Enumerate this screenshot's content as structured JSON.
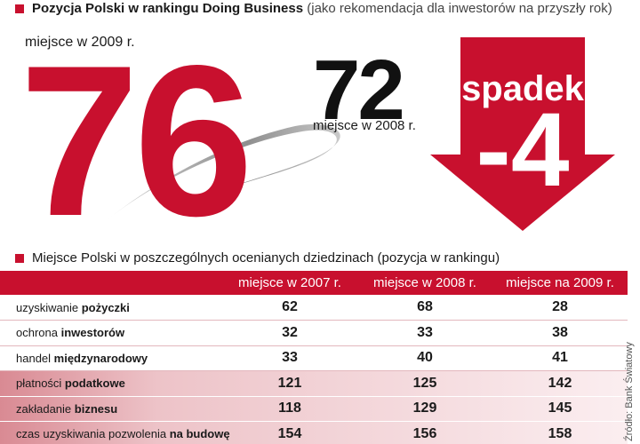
{
  "colors": {
    "accent": "#c8102e",
    "dark": "#111111"
  },
  "header": {
    "title_bold": "Pozycja Polski w rankingu Doing Business",
    "title_sub": "(jako rekomendacja dla inwestorów na przyszły rok)"
  },
  "ranking": {
    "current_label": "miejsce w 2009 r.",
    "current_value": "76",
    "previous_label": "miejsce w 2008 r.",
    "previous_value": "72",
    "change_word": "spadek",
    "change_value": "-4"
  },
  "chart_data": {
    "type": "table",
    "title": "Miejsce Polski w poszczególnych ocenianych dziedzinach (pozycja w rankingu)",
    "columns": [
      "miejsce w 2007 r.",
      "miejsce w 2008 r.",
      "miejsce na 2009 r."
    ],
    "rows": [
      {
        "label_pre": "uzyskiwanie ",
        "label_bold": "pożyczki",
        "values": [
          62,
          68,
          28
        ],
        "shaded": false
      },
      {
        "label_pre": "ochrona ",
        "label_bold": "inwestorów",
        "values": [
          32,
          33,
          38
        ],
        "shaded": false
      },
      {
        "label_pre": "handel ",
        "label_bold": "międzynarodowy",
        "values": [
          33,
          40,
          41
        ],
        "shaded": false
      },
      {
        "label_pre": "płatności ",
        "label_bold": "podatkowe",
        "values": [
          121,
          125,
          142
        ],
        "shaded": true
      },
      {
        "label_pre": "zakładanie ",
        "label_bold": "biznesu",
        "values": [
          118,
          129,
          145
        ],
        "shaded": true
      },
      {
        "label_pre": "czas uzyskiwania pozwolenia ",
        "label_bold": "na budowę",
        "values": [
          154,
          156,
          158
        ],
        "shaded": true
      }
    ]
  },
  "source": "Źródło: Bank Światowy"
}
